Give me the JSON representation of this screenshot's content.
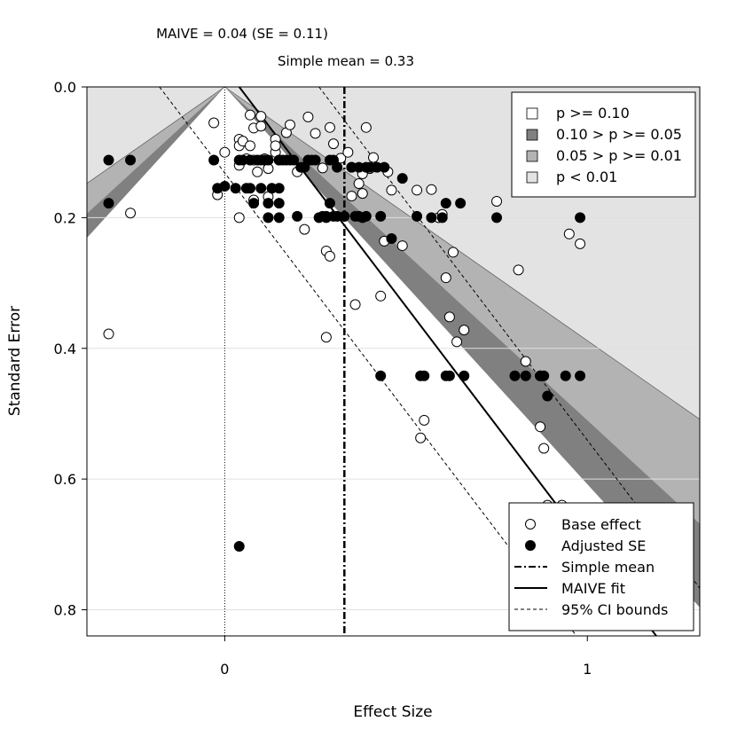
{
  "chart_data": {
    "type": "scatter",
    "title": "",
    "annotations": {
      "maive": "MAIVE = 0.04 (SE = 0.11)",
      "simple_mean": "Simple mean = 0.33"
    },
    "xlabel": "Effect Size",
    "ylabel": "Standard Error",
    "xlim": [
      -0.38,
      1.31
    ],
    "ylim": [
      0.0,
      0.84
    ],
    "y_reversed": true,
    "x_ticks": [
      0,
      1
    ],
    "y_ticks": [
      0.0,
      0.2,
      0.4,
      0.6,
      0.8
    ],
    "x_tick_labels": [
      "0",
      "1"
    ],
    "y_tick_labels": [
      "0.0",
      "0.2",
      "0.4",
      "0.6",
      "0.8"
    ],
    "grid": true,
    "maive_estimate": 0.04,
    "maive_se": 0.11,
    "simple_mean": 0.33,
    "significance_legend": {
      "position": "top-right",
      "entries": [
        {
          "label": "p >= 0.10",
          "color": "#ffffff"
        },
        {
          "label": "0.10 > p >= 0.05",
          "color": "#808080"
        },
        {
          "label": "0.05 > p >= 0.01",
          "color": "#b3b3b3"
        },
        {
          "label": "p < 0.01",
          "color": "#e3e3e3"
        }
      ]
    },
    "series_legend": {
      "position": "bottom-right",
      "entries": [
        {
          "label": "Base effect",
          "style": "open-circle"
        },
        {
          "label": "Adjusted SE",
          "style": "filled-circle"
        },
        {
          "label": "Simple mean",
          "style": "dashdot"
        },
        {
          "label": "MAIVE fit",
          "style": "solid"
        },
        {
          "label": "95% CI bounds",
          "style": "dashed"
        }
      ]
    },
    "series": [
      {
        "name": "Base effect",
        "points": [
          [
            -0.32,
            0.378
          ],
          [
            -0.26,
            0.193
          ],
          [
            -0.03,
            0.055
          ],
          [
            -0.02,
            0.165
          ],
          [
            0.0,
            0.1
          ],
          [
            0.04,
            0.08
          ],
          [
            0.04,
            0.09
          ],
          [
            0.04,
            0.12
          ],
          [
            0.04,
            0.2
          ],
          [
            0.05,
            0.083
          ],
          [
            0.06,
            0.11
          ],
          [
            0.07,
            0.043
          ],
          [
            0.07,
            0.09
          ],
          [
            0.08,
            0.063
          ],
          [
            0.08,
            0.173
          ],
          [
            0.08,
            0.112
          ],
          [
            0.09,
            0.13
          ],
          [
            0.1,
            0.06
          ],
          [
            0.1,
            0.045
          ],
          [
            0.11,
            0.11
          ],
          [
            0.12,
            0.168
          ],
          [
            0.12,
            0.125
          ],
          [
            0.14,
            0.1
          ],
          [
            0.14,
            0.08
          ],
          [
            0.14,
            0.09
          ],
          [
            0.17,
            0.07
          ],
          [
            0.18,
            0.058
          ],
          [
            0.2,
            0.13
          ],
          [
            0.22,
            0.218
          ],
          [
            0.23,
            0.046
          ],
          [
            0.25,
            0.071
          ],
          [
            0.27,
            0.124
          ],
          [
            0.28,
            0.251
          ],
          [
            0.28,
            0.383
          ],
          [
            0.29,
            0.259
          ],
          [
            0.29,
            0.062
          ],
          [
            0.3,
            0.087
          ],
          [
            0.32,
            0.109
          ],
          [
            0.34,
            0.1
          ],
          [
            0.35,
            0.123
          ],
          [
            0.35,
            0.167
          ],
          [
            0.36,
            0.333
          ],
          [
            0.37,
            0.148
          ],
          [
            0.38,
            0.133
          ],
          [
            0.38,
            0.163
          ],
          [
            0.39,
            0.062
          ],
          [
            0.4,
            0.125
          ],
          [
            0.41,
            0.108
          ],
          [
            0.43,
            0.32
          ],
          [
            0.44,
            0.236
          ],
          [
            0.45,
            0.13
          ],
          [
            0.46,
            0.158
          ],
          [
            0.49,
            0.243
          ],
          [
            0.53,
            0.158
          ],
          [
            0.54,
            0.537
          ],
          [
            0.55,
            0.51
          ],
          [
            0.57,
            0.157
          ],
          [
            0.59,
            0.2
          ],
          [
            0.6,
            0.195
          ],
          [
            0.61,
            0.292
          ],
          [
            0.62,
            0.352
          ],
          [
            0.63,
            0.253
          ],
          [
            0.64,
            0.39
          ],
          [
            0.66,
            0.372
          ],
          [
            0.75,
            0.175
          ],
          [
            0.81,
            0.28
          ],
          [
            0.83,
            0.42
          ],
          [
            0.87,
            0.52
          ],
          [
            0.88,
            0.553
          ],
          [
            0.89,
            0.64
          ],
          [
            0.93,
            0.64
          ],
          [
            0.95,
            0.225
          ],
          [
            0.98,
            0.24
          ]
        ]
      },
      {
        "name": "Adjusted SE",
        "points": [
          [
            -0.32,
            0.112
          ],
          [
            -0.32,
            0.178
          ],
          [
            -0.26,
            0.112
          ],
          [
            -0.03,
            0.112
          ],
          [
            -0.02,
            0.155
          ],
          [
            0.0,
            0.152
          ],
          [
            0.03,
            0.155
          ],
          [
            0.04,
            0.112
          ],
          [
            0.04,
            0.703
          ],
          [
            0.05,
            0.112
          ],
          [
            0.06,
            0.155
          ],
          [
            0.07,
            0.112
          ],
          [
            0.07,
            0.155
          ],
          [
            0.08,
            0.178
          ],
          [
            0.09,
            0.112
          ],
          [
            0.1,
            0.112
          ],
          [
            0.1,
            0.155
          ],
          [
            0.11,
            0.112
          ],
          [
            0.12,
            0.112
          ],
          [
            0.12,
            0.178
          ],
          [
            0.12,
            0.2
          ],
          [
            0.13,
            0.155
          ],
          [
            0.15,
            0.112
          ],
          [
            0.15,
            0.155
          ],
          [
            0.15,
            0.178
          ],
          [
            0.15,
            0.2
          ],
          [
            0.15,
            0.112
          ],
          [
            0.16,
            0.112
          ],
          [
            0.17,
            0.112
          ],
          [
            0.18,
            0.112
          ],
          [
            0.19,
            0.112
          ],
          [
            0.2,
            0.198
          ],
          [
            0.21,
            0.123
          ],
          [
            0.22,
            0.123
          ],
          [
            0.23,
            0.112
          ],
          [
            0.24,
            0.112
          ],
          [
            0.25,
            0.112
          ],
          [
            0.26,
            0.2
          ],
          [
            0.27,
            0.198
          ],
          [
            0.28,
            0.198
          ],
          [
            0.28,
            0.2
          ],
          [
            0.29,
            0.112
          ],
          [
            0.29,
            0.178
          ],
          [
            0.3,
            0.112
          ],
          [
            0.3,
            0.198
          ],
          [
            0.31,
            0.123
          ],
          [
            0.31,
            0.198
          ],
          [
            0.33,
            0.198
          ],
          [
            0.35,
            0.123
          ],
          [
            0.36,
            0.198
          ],
          [
            0.37,
            0.123
          ],
          [
            0.37,
            0.198
          ],
          [
            0.38,
            0.2
          ],
          [
            0.39,
            0.198
          ],
          [
            0.39,
            0.123
          ],
          [
            0.4,
            0.123
          ],
          [
            0.42,
            0.123
          ],
          [
            0.43,
            0.198
          ],
          [
            0.43,
            0.442
          ],
          [
            0.44,
            0.123
          ],
          [
            0.46,
            0.232
          ],
          [
            0.49,
            0.14
          ],
          [
            0.53,
            0.198
          ],
          [
            0.54,
            0.442
          ],
          [
            0.55,
            0.442
          ],
          [
            0.57,
            0.2
          ],
          [
            0.6,
            0.2
          ],
          [
            0.61,
            0.178
          ],
          [
            0.61,
            0.442
          ],
          [
            0.62,
            0.442
          ],
          [
            0.65,
            0.178
          ],
          [
            0.66,
            0.442
          ],
          [
            0.75,
            0.2
          ],
          [
            0.8,
            0.442
          ],
          [
            0.83,
            0.442
          ],
          [
            0.87,
            0.442
          ],
          [
            0.87,
            0.442
          ],
          [
            0.88,
            0.442
          ],
          [
            0.89,
            0.473
          ],
          [
            0.94,
            0.442
          ],
          [
            0.98,
            0.2
          ],
          [
            0.98,
            0.442
          ]
        ]
      }
    ]
  }
}
